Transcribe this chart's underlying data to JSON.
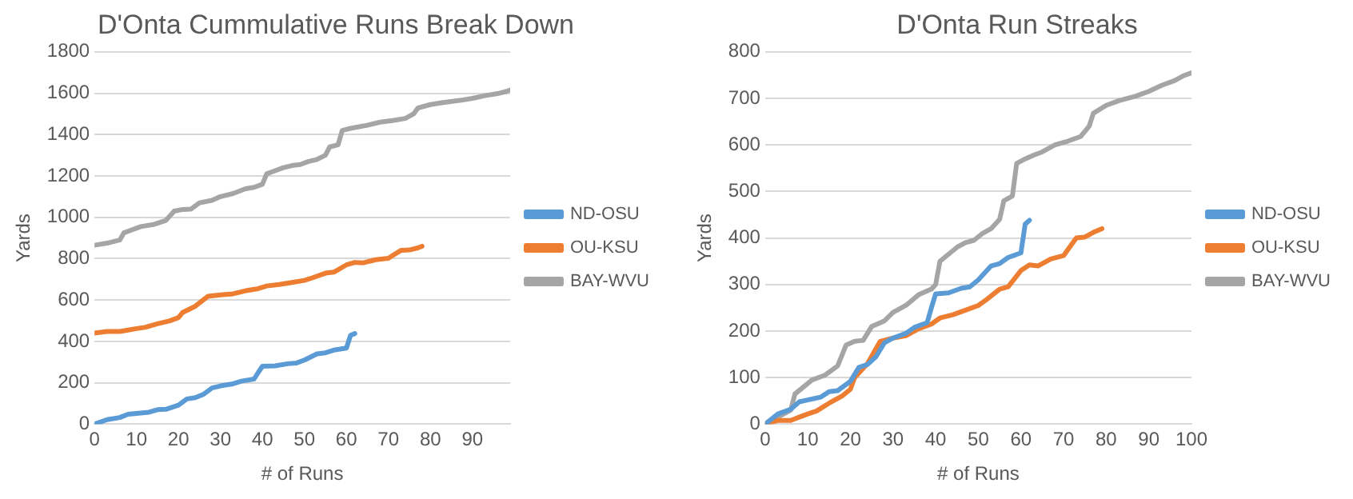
{
  "chart_data": [
    {
      "type": "line",
      "title": "D'Onta Cummulative Runs Break Down",
      "xlabel": "# of Runs",
      "ylabel": "Yards",
      "xlim": [
        0,
        99
      ],
      "xticks": [
        0,
        10,
        20,
        30,
        40,
        50,
        60,
        70,
        80,
        90
      ],
      "ylim": [
        0,
        1800
      ],
      "yticks": [
        0,
        200,
        400,
        600,
        800,
        1000,
        1200,
        1400,
        1600,
        1800
      ],
      "grid": "y",
      "legend": "right",
      "marker": "none",
      "series": [
        {
          "name": "ND-OSU",
          "color": "#5b9bd5",
          "x": [
            0,
            3,
            6,
            8,
            10,
            13,
            15,
            17,
            20,
            22,
            24,
            26,
            28,
            30,
            33,
            35,
            38,
            39,
            40,
            43,
            46,
            48,
            50,
            53,
            55,
            57,
            60,
            61,
            62
          ],
          "values": [
            0,
            22,
            32,
            48,
            52,
            58,
            70,
            72,
            92,
            122,
            128,
            145,
            175,
            185,
            195,
            208,
            218,
            250,
            280,
            282,
            292,
            295,
            310,
            340,
            345,
            358,
            368,
            430,
            438
          ]
        },
        {
          "name": "OU-KSU",
          "color": "#ed7d31",
          "x": [
            0,
            3,
            6,
            8,
            10,
            12,
            15,
            18,
            20,
            21,
            24,
            27,
            30,
            33,
            36,
            39,
            41,
            44,
            47,
            50,
            52,
            55,
            57,
            60,
            62,
            64,
            67,
            70,
            71,
            73,
            75,
            77,
            78
          ],
          "values": [
            440,
            448,
            448,
            455,
            462,
            468,
            485,
            500,
            515,
            540,
            570,
            618,
            625,
            630,
            645,
            655,
            668,
            675,
            685,
            695,
            708,
            730,
            735,
            770,
            782,
            780,
            795,
            802,
            815,
            840,
            842,
            852,
            860
          ]
        },
        {
          "name": "BAY-WVU",
          "color": "#a5a5a5",
          "x": [
            0,
            3,
            6,
            7,
            9,
            11,
            14,
            17,
            19,
            21,
            23,
            25,
            28,
            30,
            33,
            36,
            38,
            40,
            41,
            43,
            45,
            47,
            49,
            51,
            53,
            55,
            56,
            58,
            59,
            61,
            63,
            65,
            68,
            71,
            74,
            76,
            77,
            80,
            83,
            87,
            90,
            93,
            96,
            98,
            99
          ],
          "values": [
            865,
            875,
            890,
            925,
            940,
            955,
            965,
            985,
            1030,
            1038,
            1040,
            1070,
            1082,
            1100,
            1115,
            1138,
            1145,
            1160,
            1210,
            1225,
            1240,
            1250,
            1255,
            1270,
            1280,
            1300,
            1340,
            1350,
            1420,
            1430,
            1438,
            1445,
            1460,
            1468,
            1478,
            1500,
            1528,
            1545,
            1555,
            1565,
            1575,
            1588,
            1598,
            1608,
            1615
          ]
        }
      ]
    },
    {
      "type": "line",
      "title": "D'Onta Run Streaks",
      "xlabel": "# of Runs",
      "ylabel": "Yards",
      "xlim": [
        0,
        100
      ],
      "xticks": [
        0,
        10,
        20,
        30,
        40,
        50,
        60,
        70,
        80,
        90,
        100
      ],
      "ylim": [
        0,
        800
      ],
      "yticks": [
        0,
        100,
        200,
        300,
        400,
        500,
        600,
        700,
        800
      ],
      "grid": "y",
      "legend": "right",
      "marker": "none",
      "series": [
        {
          "name": "ND-OSU",
          "color": "#5b9bd5",
          "x": [
            0,
            3,
            6,
            8,
            10,
            13,
            15,
            17,
            20,
            22,
            24,
            26,
            28,
            30,
            33,
            35,
            38,
            39,
            40,
            43,
            46,
            48,
            50,
            53,
            55,
            57,
            60,
            61,
            62
          ],
          "values": [
            0,
            22,
            32,
            48,
            52,
            58,
            70,
            72,
            92,
            122,
            128,
            145,
            175,
            185,
            195,
            208,
            218,
            250,
            280,
            282,
            292,
            295,
            310,
            340,
            345,
            358,
            368,
            430,
            438
          ]
        },
        {
          "name": "OU-KSU",
          "color": "#ed7d31",
          "x": [
            0,
            3,
            6,
            8,
            10,
            12,
            15,
            18,
            20,
            21,
            24,
            27,
            30,
            33,
            36,
            39,
            41,
            44,
            47,
            50,
            52,
            55,
            57,
            60,
            62,
            64,
            67,
            70,
            71,
            73,
            75,
            77,
            79
          ],
          "values": [
            0,
            8,
            8,
            15,
            22,
            28,
            45,
            60,
            75,
            100,
            130,
            178,
            185,
            190,
            205,
            215,
            228,
            235,
            245,
            255,
            268,
            290,
            295,
            330,
            342,
            340,
            355,
            362,
            375,
            400,
            402,
            412,
            420
          ]
        },
        {
          "name": "BAY-WVU",
          "color": "#a5a5a5",
          "x": [
            0,
            3,
            6,
            7,
            9,
            11,
            14,
            17,
            19,
            21,
            23,
            25,
            28,
            30,
            33,
            36,
            39,
            40,
            41,
            43,
            45,
            47,
            49,
            51,
            53,
            55,
            56,
            58,
            59,
            61,
            63,
            65,
            68,
            71,
            74,
            76,
            77,
            80,
            83,
            87,
            90,
            93,
            96,
            98,
            100
          ],
          "values": [
            0,
            15,
            30,
            65,
            80,
            95,
            105,
            125,
            170,
            178,
            180,
            210,
            222,
            240,
            255,
            278,
            290,
            300,
            350,
            365,
            380,
            390,
            395,
            410,
            420,
            440,
            480,
            490,
            560,
            570,
            578,
            585,
            600,
            608,
            618,
            640,
            668,
            685,
            695,
            705,
            715,
            728,
            738,
            748,
            755
          ]
        }
      ]
    }
  ]
}
